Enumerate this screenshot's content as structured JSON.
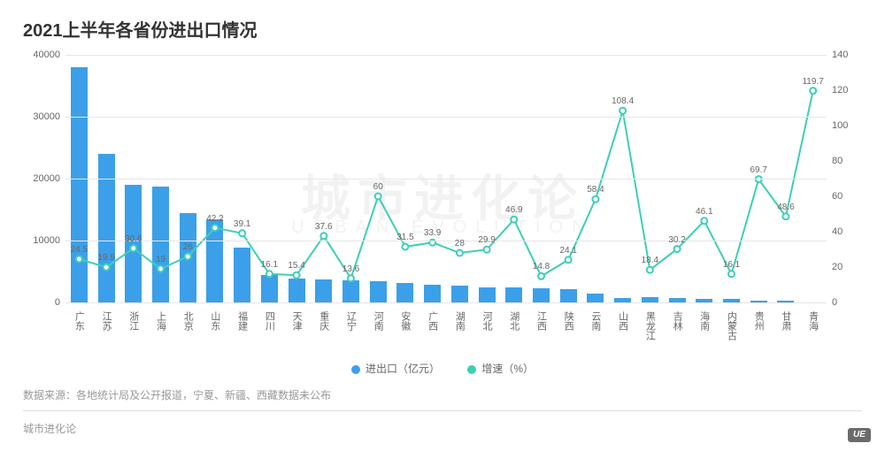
{
  "title": "2021上半年各省份进出口情况",
  "watermark_main": "城市进化论",
  "watermark_sub": "URBAN EVOLUTION",
  "footnote_source": "数据来源：各地统计局及公开报道，宁夏、新疆、西藏数据未公布",
  "footnote_brand": "城市进化论",
  "badge_text": "UE",
  "chart": {
    "type": "bar+line",
    "background_color": "#ffffff",
    "grid_color": "#e6e6e6",
    "bar_color": "#3ba0e9",
    "line_color": "#3dcfb6",
    "line_width": 2,
    "marker_radius": 3.5,
    "marker_fill": "#ffffff",
    "categories": [
      "广东",
      "江苏",
      "浙江",
      "上海",
      "北京",
      "山东",
      "福建",
      "四川",
      "天津",
      "重庆",
      "辽宁",
      "河南",
      "安徽",
      "广西",
      "湖南",
      "河北",
      "湖北",
      "江西",
      "陕西",
      "云南",
      "山西",
      "黑龙江",
      "吉林",
      "海南",
      "内蒙古",
      "贵州",
      "甘肃",
      "青海"
    ],
    "bar_values": [
      38000,
      24000,
      19000,
      18700,
      14500,
      13500,
      8800,
      4500,
      3900,
      3700,
      3600,
      3500,
      3200,
      2900,
      2700,
      2500,
      2400,
      2300,
      2100,
      1500,
      700,
      900,
      700,
      600,
      600,
      300,
      250,
      20
    ],
    "line_values": [
      24.5,
      19.9,
      30.6,
      19,
      26,
      42.2,
      39.1,
      16.1,
      15.4,
      37.6,
      13.6,
      60,
      31.5,
      33.9,
      28,
      29.9,
      46.9,
      14.8,
      24.1,
      58.4,
      108.4,
      18.4,
      30.2,
      46.1,
      16.1,
      69.7,
      48.6,
      119.7
    ],
    "y_left": {
      "min": 0,
      "max": 40000,
      "step": 10000,
      "fontsize": 11,
      "color": "#666666"
    },
    "y_right": {
      "min": 0,
      "max": 140,
      "step": 20,
      "fontsize": 11,
      "color": "#666666"
    },
    "x_label_fontsize": 11,
    "value_label_fontsize": 10,
    "bar_width_ratio": 0.62,
    "title_fontsize": 20,
    "title_fontweight": 700,
    "title_color": "#333333",
    "legend": {
      "items": [
        {
          "label": "进出口（亿元）",
          "color": "#3ba0e9"
        },
        {
          "label": "增速（%）",
          "color": "#3dcfb6"
        }
      ],
      "fontsize": 12,
      "color": "#666666"
    }
  }
}
